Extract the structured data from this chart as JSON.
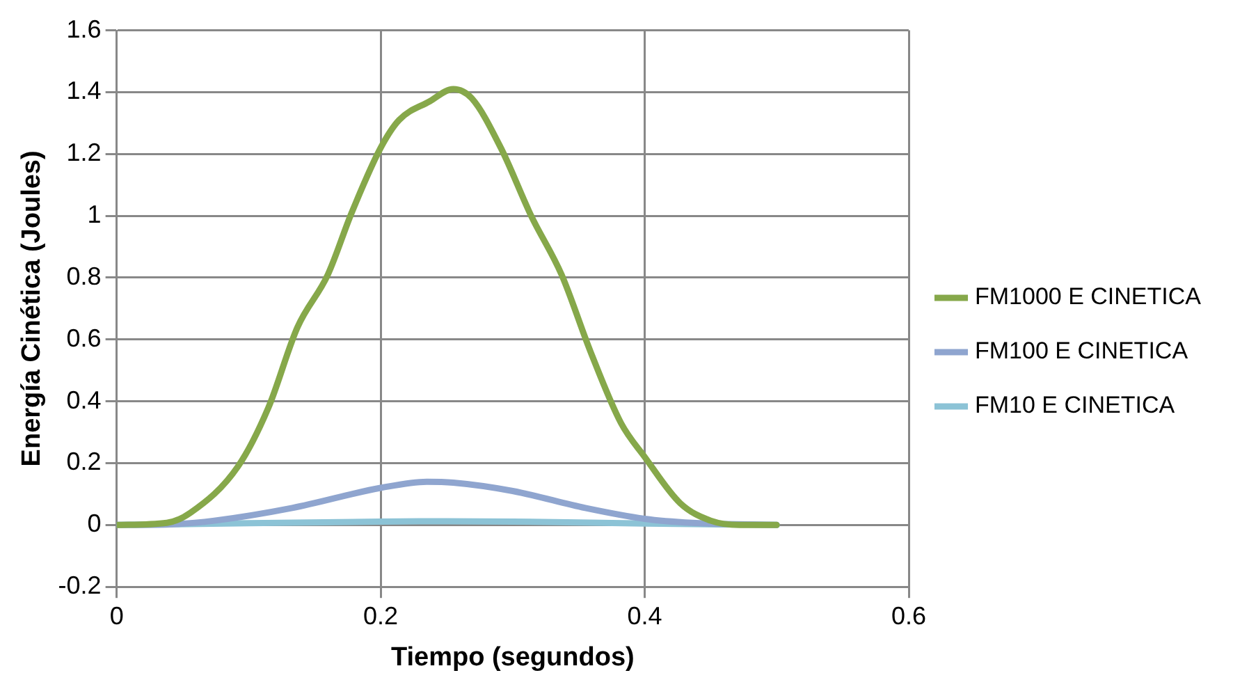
{
  "chart_data": {
    "type": "line",
    "xlabel": "Tiempo (segundos)",
    "ylabel": "Energía Cinética (Joules)",
    "xlim": [
      0,
      0.6
    ],
    "xticks": [
      0,
      0.2,
      0.4,
      0.6
    ],
    "ylim": [
      -0.2,
      1.6
    ],
    "yticks": [
      -0.2,
      0,
      0.2,
      0.4,
      0.6,
      0.8,
      1,
      1.2,
      1.4,
      1.6
    ],
    "grid": true,
    "legend": "right",
    "marker": "none",
    "line_style": "solid",
    "series": [
      {
        "name": "FM1000 E CINETICA",
        "color": "#86a84a",
        "x": [
          0,
          0.038,
          0.056,
          0.092,
          0.115,
          0.137,
          0.16,
          0.178,
          0.2,
          0.214,
          0.237,
          0.255,
          0.269,
          0.291,
          0.314,
          0.337,
          0.359,
          0.382,
          0.4,
          0.427,
          0.45,
          0.472,
          0.5
        ],
        "values": [
          0,
          0.007,
          0.04,
          0.19,
          0.38,
          0.64,
          0.81,
          1.01,
          1.22,
          1.31,
          1.37,
          1.41,
          1.38,
          1.22,
          1.0,
          0.81,
          0.56,
          0.33,
          0.22,
          0.07,
          0.014,
          0,
          0
        ]
      },
      {
        "name": "FM100 E CINETICA",
        "color": "#8fa5cf",
        "x": [
          0,
          0.04,
          0.074,
          0.133,
          0.2,
          0.235,
          0.255,
          0.3,
          0.355,
          0.4,
          0.436,
          0.5
        ],
        "values": [
          0,
          0.002,
          0.014,
          0.055,
          0.12,
          0.14,
          0.137,
          0.11,
          0.055,
          0.02,
          0.007,
          0
        ]
      },
      {
        "name": "FM10 E CINETICA",
        "color": "#8cc3d6",
        "x": [
          0,
          0.1,
          0.2,
          0.25,
          0.3,
          0.4,
          0.5
        ],
        "values": [
          0,
          0.006,
          0.011,
          0.012,
          0.011,
          0.005,
          0
        ]
      }
    ]
  }
}
